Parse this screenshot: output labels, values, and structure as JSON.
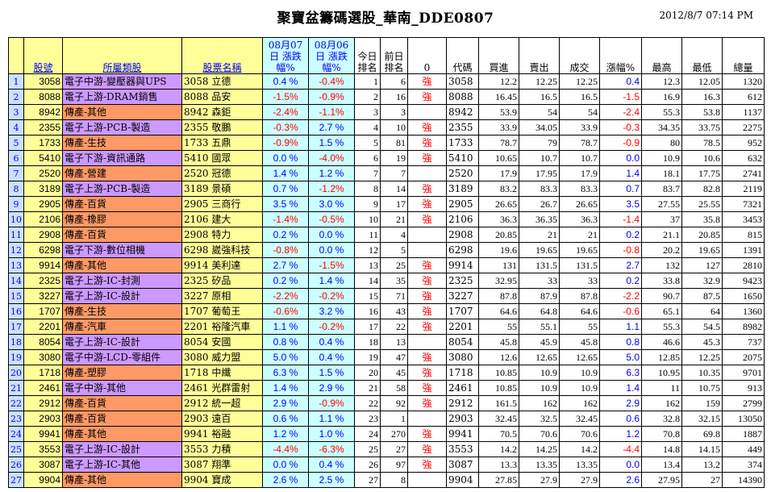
{
  "header": {
    "title": "聚寶盆籌碼選股_華南_DDE0807",
    "timestamp": "2012/8/7  07:14 PM"
  },
  "columns": {
    "code": "股號",
    "category": "所屬類股",
    "stock_name": "股票名稱",
    "chg_0807": "08月07日 漲跌幅%",
    "chg_0806": "08月06日 漲跌幅%",
    "rank_today": "今日 排名",
    "rank_prev": "前日 排名",
    "signal": "0",
    "code2": "代碼",
    "buy": "買進",
    "sell": "賣出",
    "trade": "成交",
    "chg": "漲幅%",
    "high": "最高",
    "low": "最低",
    "volume": "總量"
  },
  "colors": {
    "up": "#0000ee",
    "down": "#ff0000",
    "electronics": "#cc99ff",
    "traditional": "#ff9966",
    "yellow": "#ffff99",
    "cyan": "#ccffff"
  },
  "rows": [
    {
      "idx": "1",
      "code": "3058",
      "category": "電子中游-變壓器與UPS",
      "type": "elec",
      "name": "3058 立德",
      "c7": "0.4 %",
      "c6": "-0.4%",
      "rt": "1",
      "rp": "6",
      "sig": "強",
      "code2": "3058",
      "buy": "12.2",
      "sell": "12.25",
      "trade": "12.25",
      "chg": "0.4",
      "high": "12.3",
      "low": "12.05",
      "vol": "1320"
    },
    {
      "idx": "2",
      "code": "8088",
      "category": "電子上游-DRAM銷售",
      "type": "elec",
      "name": "8088 品安",
      "c7": "-1.5%",
      "c6": "-0.9%",
      "rt": "2",
      "rp": "16",
      "sig": "強",
      "code2": "8088",
      "buy": "16.45",
      "sell": "16.5",
      "trade": "16.5",
      "chg": "-1.5",
      "high": "16.9",
      "low": "16.3",
      "vol": "612"
    },
    {
      "idx": "3",
      "code": "8942",
      "category": "傳產-其他",
      "type": "trad",
      "name": "8942 森鉅",
      "c7": "-2.4%",
      "c6": "-1.1%",
      "rt": "3",
      "rp": "3",
      "sig": "",
      "code2": "8942",
      "buy": "53.9",
      "sell": "54",
      "trade": "54",
      "chg": "-2.4",
      "high": "55.3",
      "low": "53.8",
      "vol": "1137"
    },
    {
      "idx": "4",
      "code": "2355",
      "category": "電子上游-PCB-製造",
      "type": "elec",
      "name": "2355 敬鵬",
      "c7": "-0.3%",
      "c6": "2.7 %",
      "rt": "4",
      "rp": "10",
      "sig": "強",
      "code2": "2355",
      "buy": "33.9",
      "sell": "34.05",
      "trade": "33.9",
      "chg": "-0.3",
      "high": "34.35",
      "low": "33.75",
      "vol": "2275"
    },
    {
      "idx": "5",
      "code": "1733",
      "category": "傳產-生技",
      "type": "trad",
      "name": "1733 五鼎",
      "c7": "-0.9%",
      "c6": "1.5 %",
      "rt": "5",
      "rp": "81",
      "sig": "強",
      "code2": "1733",
      "buy": "78.7",
      "sell": "79",
      "trade": "78.7",
      "chg": "-0.9",
      "high": "80",
      "low": "78.5",
      "vol": "952"
    },
    {
      "idx": "6",
      "code": "5410",
      "category": "電子下游-資訊通路",
      "type": "elec",
      "name": "5410 國眾",
      "c7": "0.0 %",
      "c6": "-4.0%",
      "rt": "6",
      "rp": "19",
      "sig": "強",
      "code2": "5410",
      "buy": "10.65",
      "sell": "10.7",
      "trade": "10.7",
      "chg": "0.0",
      "high": "10.9",
      "low": "10.6",
      "vol": "632"
    },
    {
      "idx": "7",
      "code": "2520",
      "category": "傳產-營建",
      "type": "trad",
      "name": "2520 冠德",
      "c7": "1.4 %",
      "c6": "1.2 %",
      "rt": "7",
      "rp": "7",
      "sig": "",
      "code2": "2520",
      "buy": "17.9",
      "sell": "17.95",
      "trade": "17.9",
      "chg": "1.4",
      "high": "18.1",
      "low": "17.75",
      "vol": "2741"
    },
    {
      "idx": "8",
      "code": "3189",
      "category": "電子上游-PCB-製造",
      "type": "elec",
      "name": "3189 景碩",
      "c7": "0.7 %",
      "c6": "-1.2%",
      "rt": "8",
      "rp": "14",
      "sig": "強",
      "code2": "3189",
      "buy": "83.2",
      "sell": "83.3",
      "trade": "83.3",
      "chg": "0.7",
      "high": "83.7",
      "low": "82.8",
      "vol": "2119"
    },
    {
      "idx": "9",
      "code": "2905",
      "category": "傳產-百貨",
      "type": "trad",
      "name": "2905 三商行",
      "c7": "3.5 %",
      "c6": "3.0 %",
      "rt": "9",
      "rp": "17",
      "sig": "強",
      "code2": "2905",
      "buy": "26.65",
      "sell": "26.7",
      "trade": "26.65",
      "chg": "3.5",
      "high": "27.55",
      "low": "25.55",
      "vol": "7321"
    },
    {
      "idx": "10",
      "code": "2106",
      "category": "傳產-橡膠",
      "type": "trad",
      "name": "2106 建大",
      "c7": "-1.4%",
      "c6": "-0.5%",
      "rt": "10",
      "rp": "21",
      "sig": "強",
      "code2": "2106",
      "buy": "36.3",
      "sell": "36.35",
      "trade": "36.3",
      "chg": "-1.4",
      "high": "37",
      "low": "35.8",
      "vol": "3453"
    },
    {
      "idx": "11",
      "code": "2908",
      "category": "傳產-百貨",
      "type": "trad",
      "name": "2908 特力",
      "c7": "0.2 %",
      "c6": "0.0 %",
      "rt": "11",
      "rp": "4",
      "sig": "",
      "code2": "2908",
      "buy": "20.85",
      "sell": "21",
      "trade": "21",
      "chg": "0.2",
      "high": "21.1",
      "low": "20.85",
      "vol": "815"
    },
    {
      "idx": "12",
      "code": "6298",
      "category": "電子下游-數位相機",
      "type": "elec",
      "name": "6298 崴強科技",
      "c7": "-0.8%",
      "c6": "0.0 %",
      "rt": "12",
      "rp": "5",
      "sig": "",
      "code2": "6298",
      "buy": "19.6",
      "sell": "19.65",
      "trade": "19.65",
      "chg": "-0.8",
      "high": "20.2",
      "low": "19.65",
      "vol": "1391"
    },
    {
      "idx": "13",
      "code": "9914",
      "category": "傳產-其他",
      "type": "trad",
      "name": "9914 美利達",
      "c7": "2.7 %",
      "c6": "-1.5%",
      "rt": "13",
      "rp": "25",
      "sig": "強",
      "code2": "9914",
      "buy": "131",
      "sell": "131.5",
      "trade": "131.5",
      "chg": "2.7",
      "high": "132",
      "low": "127",
      "vol": "2810"
    },
    {
      "idx": "14",
      "code": "2325",
      "category": "電子上游-IC-封測",
      "type": "elec",
      "name": "2325 矽品",
      "c7": "0.2 %",
      "c6": "1.4 %",
      "rt": "14",
      "rp": "35",
      "sig": "強",
      "code2": "2325",
      "buy": "32.95",
      "sell": "33",
      "trade": "33",
      "chg": "0.2",
      "high": "33.8",
      "low": "32.9",
      "vol": "9423"
    },
    {
      "idx": "15",
      "code": "3227",
      "category": "電子上游-IC-設計",
      "type": "elec",
      "name": "3227 原相",
      "c7": "-2.2%",
      "c6": "-0.2%",
      "rt": "15",
      "rp": "71",
      "sig": "強",
      "code2": "3227",
      "buy": "87.8",
      "sell": "87.9",
      "trade": "87.8",
      "chg": "-2.2",
      "high": "90.7",
      "low": "87.5",
      "vol": "1650"
    },
    {
      "idx": "16",
      "code": "1707",
      "category": "傳產-生技",
      "type": "trad",
      "name": "1707 葡萄王",
      "c7": "-0.6%",
      "c6": "3.2 %",
      "rt": "16",
      "rp": "43",
      "sig": "強",
      "code2": "1707",
      "buy": "64.6",
      "sell": "64.8",
      "trade": "64.6",
      "chg": "-0.6",
      "high": "65.1",
      "low": "64",
      "vol": "1360"
    },
    {
      "idx": "17",
      "code": "2201",
      "category": "傳產-汽車",
      "type": "trad",
      "name": "2201 裕隆汽車",
      "c7": "1.1 %",
      "c6": "-0.2%",
      "rt": "17",
      "rp": "22",
      "sig": "強",
      "code2": "2201",
      "buy": "55",
      "sell": "55.1",
      "trade": "55",
      "chg": "1.1",
      "high": "55.3",
      "low": "54.5",
      "vol": "8982"
    },
    {
      "idx": "18",
      "code": "8054",
      "category": "電子上游-IC-設計",
      "type": "elec",
      "name": "8054 安國",
      "c7": "0.8 %",
      "c6": "0.4 %",
      "rt": "18",
      "rp": "13",
      "sig": "",
      "code2": "8054",
      "buy": "45.8",
      "sell": "45.9",
      "trade": "45.8",
      "chg": "0.8",
      "high": "46.6",
      "low": "45.3",
      "vol": "737"
    },
    {
      "idx": "19",
      "code": "3080",
      "category": "電子中游-LCD-零組件",
      "type": "elec",
      "name": "3080 威力盟",
      "c7": "5.0 %",
      "c6": "0.4 %",
      "rt": "19",
      "rp": "47",
      "sig": "強",
      "code2": "3080",
      "buy": "12.6",
      "sell": "12.65",
      "trade": "12.65",
      "chg": "5.0",
      "high": "12.85",
      "low": "12.25",
      "vol": "2075"
    },
    {
      "idx": "20",
      "code": "1718",
      "category": "傳產-塑膠",
      "type": "trad",
      "name": "1718 中纖",
      "c7": "6.3 %",
      "c6": "1.5 %",
      "rt": "20",
      "rp": "45",
      "sig": "強",
      "code2": "1718",
      "buy": "10.85",
      "sell": "10.9",
      "trade": "10.9",
      "chg": "6.3",
      "high": "10.95",
      "low": "10.35",
      "vol": "9701"
    },
    {
      "idx": "21",
      "code": "2461",
      "category": "電子中游-其他",
      "type": "elec",
      "name": "2461 光群雷射",
      "c7": "1.4 %",
      "c6": "2.9 %",
      "rt": "21",
      "rp": "58",
      "sig": "強",
      "code2": "2461",
      "buy": "10.85",
      "sell": "10.9",
      "trade": "10.9",
      "chg": "1.4",
      "high": "11",
      "low": "10.75",
      "vol": "913"
    },
    {
      "idx": "22",
      "code": "2912",
      "category": "傳產-百貨",
      "type": "trad",
      "name": "2912 統一超",
      "c7": "2.9 %",
      "c6": "-0.9%",
      "rt": "22",
      "rp": "92",
      "sig": "強",
      "code2": "2912",
      "buy": "161.5",
      "sell": "162",
      "trade": "162",
      "chg": "2.9",
      "high": "162",
      "low": "159",
      "vol": "2799"
    },
    {
      "idx": "23",
      "code": "2903",
      "category": "傳產-百貨",
      "type": "trad",
      "name": "2903 遠百",
      "c7": "0.6 %",
      "c6": "1.1 %",
      "rt": "23",
      "rp": "1",
      "sig": "",
      "code2": "2903",
      "buy": "32.45",
      "sell": "32.5",
      "trade": "32.45",
      "chg": "0.6",
      "high": "32.8",
      "low": "32.15",
      "vol": "13050"
    },
    {
      "idx": "24",
      "code": "9941",
      "category": "傳產-其他",
      "type": "trad",
      "name": "9941 裕融",
      "c7": "1.2 %",
      "c6": "1.0 %",
      "rt": "24",
      "rp": "270",
      "sig": "強",
      "code2": "9941",
      "buy": "70.5",
      "sell": "70.6",
      "trade": "70.6",
      "chg": "1.2",
      "high": "70.8",
      "low": "69.8",
      "vol": "1887"
    },
    {
      "idx": "25",
      "code": "3553",
      "category": "電子上游-IC-設計",
      "type": "elec",
      "name": "3553 力積",
      "c7": "-4.4%",
      "c6": "-6.3%",
      "rt": "25",
      "rp": "27",
      "sig": "強",
      "code2": "3553",
      "buy": "14.2",
      "sell": "14.25",
      "trade": "14.2",
      "chg": "-4.4",
      "high": "14.8",
      "low": "14.15",
      "vol": "449"
    },
    {
      "idx": "26",
      "code": "3087",
      "category": "電子上游-IC-其他",
      "type": "elec",
      "name": "3087 翔準",
      "c7": "0.0 %",
      "c6": "0.4 %",
      "rt": "26",
      "rp": "97",
      "sig": "強",
      "code2": "3087",
      "buy": "13.3",
      "sell": "13.35",
      "trade": "13.35",
      "chg": "0.0",
      "high": "13.4",
      "low": "13.2",
      "vol": "374"
    },
    {
      "idx": "27",
      "code": "9904",
      "category": "傳產-其他",
      "type": "trad",
      "name": "9904 寶成",
      "c7": "2.6 %",
      "c6": "2.5 %",
      "rt": "27",
      "rp": "8",
      "sig": "",
      "code2": "9904",
      "buy": "27.85",
      "sell": "27.9",
      "trade": "27.9",
      "chg": "2.6",
      "high": "27.95",
      "low": "27",
      "vol": "14390"
    }
  ]
}
